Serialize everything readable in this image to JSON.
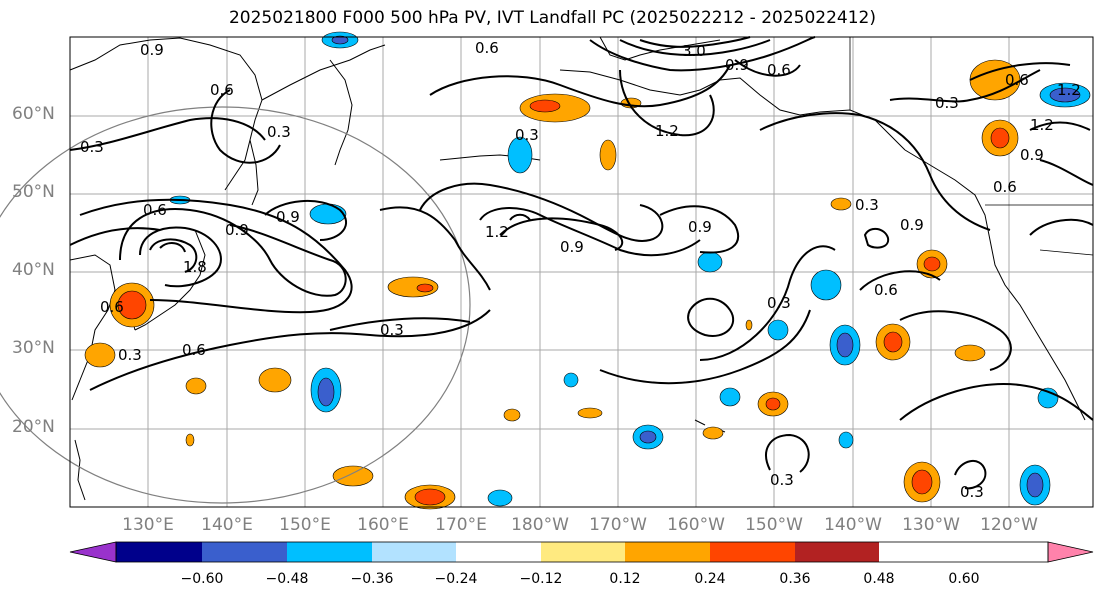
{
  "title": "2025021800 F000 500 hPa PV, IVT Landfall PC (2025022212 - 2025022412)",
  "lat_labels": [
    "60°N",
    "50°N",
    "40°N",
    "30°N",
    "20°N"
  ],
  "lon_labels": [
    "130°E",
    "140°E",
    "150°E",
    "160°E",
    "170°E",
    "180°W",
    "170°W",
    "160°W",
    "150°W",
    "140°W",
    "130°W",
    "120°W"
  ],
  "contour_labels": [
    "0.6",
    "0.9",
    "0.3",
    "0.6",
    "0.9",
    "0.3",
    "3.0",
    "1.2",
    "0.3",
    "0.6",
    "1.8",
    "0.9",
    "0.6",
    "0.9",
    "0.3",
    "1.2",
    "0.9",
    "0.9",
    "0.3",
    "0.6",
    "0.3",
    "0.6",
    "0.3",
    "0.6",
    "0.3",
    "0.9",
    "1.2",
    "1.2",
    "0.3",
    "0.3",
    "0.6",
    "0.6",
    "0.9"
  ],
  "colorbar": {
    "ticks": [
      "−0.60",
      "−0.48",
      "−0.36",
      "−0.24",
      "−0.12",
      "0.12",
      "0.24",
      "0.36",
      "0.48",
      "0.60"
    ],
    "colors": [
      "#9932cc",
      "#00008b",
      "#3a5fcd",
      "#00bfff",
      "#b2e2ff",
      "#ffffff",
      "#ffea80",
      "#ffa500",
      "#ff4500",
      "#b22222",
      "#ff82ab"
    ]
  },
  "shading_colors": {
    "neg_1": "#b2e2ff",
    "neg_2": "#00bfff",
    "neg_3": "#3a5fcd",
    "pos_1": "#ffea80",
    "pos_2": "#ffa500",
    "pos_3": "#ff4500"
  },
  "map": {
    "projection": "PlateCarree",
    "lon_range": [
      120,
      251
    ],
    "lat_range": [
      10,
      70
    ],
    "grid": true
  }
}
